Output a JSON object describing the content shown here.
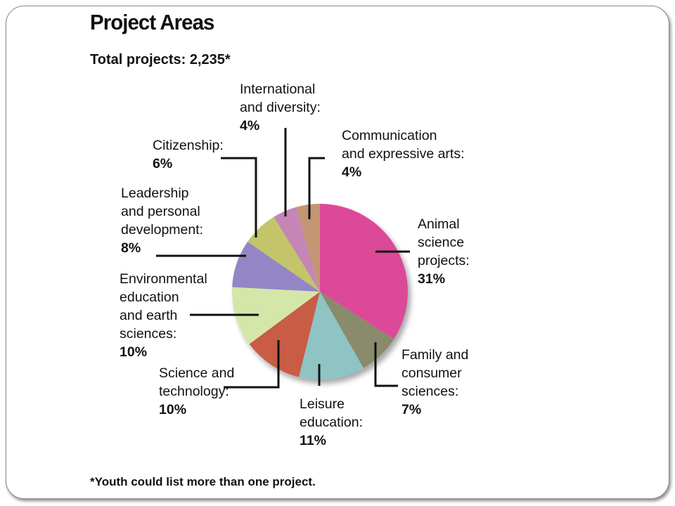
{
  "chart_data": {
    "type": "pie",
    "title": "Project Areas",
    "subtitle": "Total projects: 2,235*",
    "footnote": "*Youth could list more than one project.",
    "slices": [
      {
        "label_lines": [
          "Animal",
          "science",
          "projects:"
        ],
        "percent": "31%",
        "value": 31,
        "color": "#dc4a98"
      },
      {
        "label_lines": [
          "Family and",
          "consumer",
          "sciences:"
        ],
        "percent": "7%",
        "value": 7,
        "color": "#8a8a6c"
      },
      {
        "label_lines": [
          "Leisure",
          "education:"
        ],
        "percent": "11%",
        "value": 11,
        "color": "#8ec4c4"
      },
      {
        "label_lines": [
          "Science and",
          "technology:"
        ],
        "percent": "10%",
        "value": 10,
        "color": "#c85c45"
      },
      {
        "label_lines": [
          "Environmental",
          "education",
          "and earth",
          "sciences:"
        ],
        "percent": "10%",
        "value": 10,
        "color": "#d5e6a9"
      },
      {
        "label_lines": [
          "Leadership",
          "and personal",
          "development:"
        ],
        "percent": "8%",
        "value": 8,
        "color": "#9485c6"
      },
      {
        "label_lines": [
          "Citizenship:"
        ],
        "percent": "6%",
        "value": 6,
        "color": "#c4c46a"
      },
      {
        "label_lines": [
          "International",
          "and diversity:"
        ],
        "percent": "4%",
        "value": 4,
        "color": "#c585b7"
      },
      {
        "label_lines": [
          "Communication",
          "and expressive arts:"
        ],
        "percent": "4%",
        "value": 4,
        "color": "#c49575"
      }
    ]
  }
}
